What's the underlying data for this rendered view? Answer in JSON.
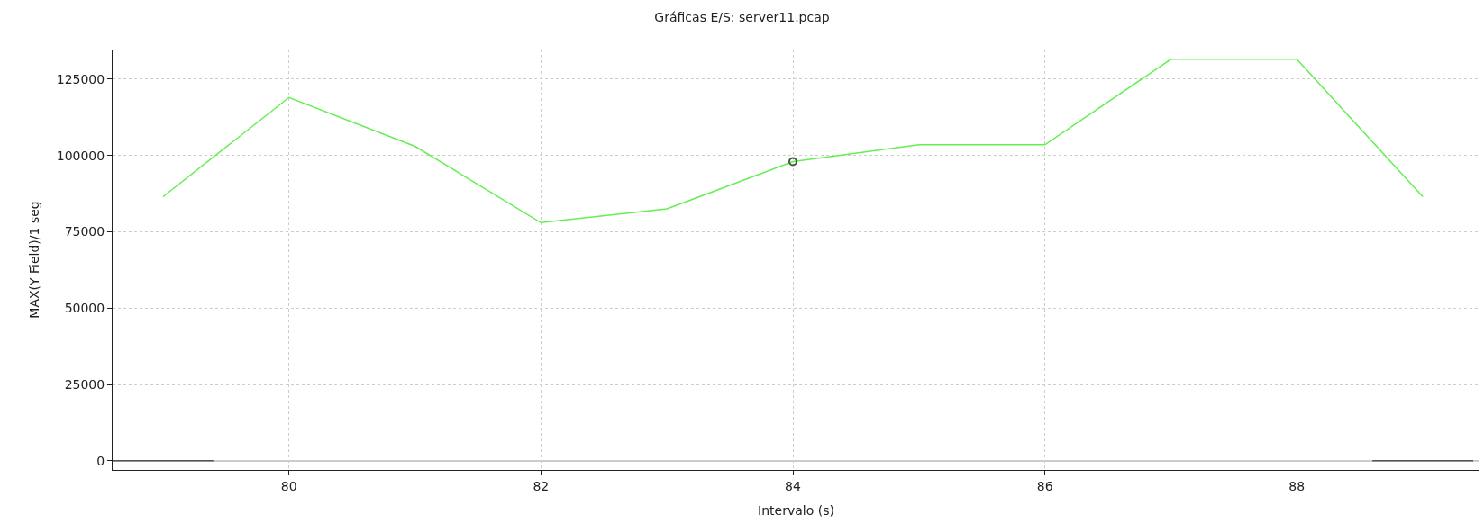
{
  "chart_data": {
    "type": "line",
    "title": "Gráficas E/S: server11.pcap",
    "xlabel": "Intervalo (s)",
    "ylabel": "MAX(Y Field)/1 seg",
    "x": [
      79,
      80,
      81,
      82,
      83,
      84,
      85,
      86,
      87,
      88,
      89
    ],
    "series": [
      {
        "color": "#66ee55",
        "values": [
          86500,
          119000,
          103000,
          78000,
          82500,
          98000,
          103500,
          103500,
          131500,
          131500,
          86500
        ]
      },
      {
        "type": "scatter",
        "color": "#3d5e3d",
        "marker": "circle",
        "x": [
          84
        ],
        "values": [
          98000
        ]
      },
      {
        "color": "#555555",
        "x": [
          78.6,
          79.4,
          79.5,
          88.6,
          89.4
        ],
        "values": [
          0,
          0,
          null,
          0,
          0
        ]
      }
    ],
    "xlim": [
      78.6,
      89.45
    ],
    "ylim": [
      -3000,
      134700
    ],
    "xticks": [
      80,
      82,
      84,
      86,
      88
    ],
    "yticks": [
      0,
      25000,
      50000,
      75000,
      100000,
      125000
    ],
    "grid": true,
    "legend": false
  }
}
